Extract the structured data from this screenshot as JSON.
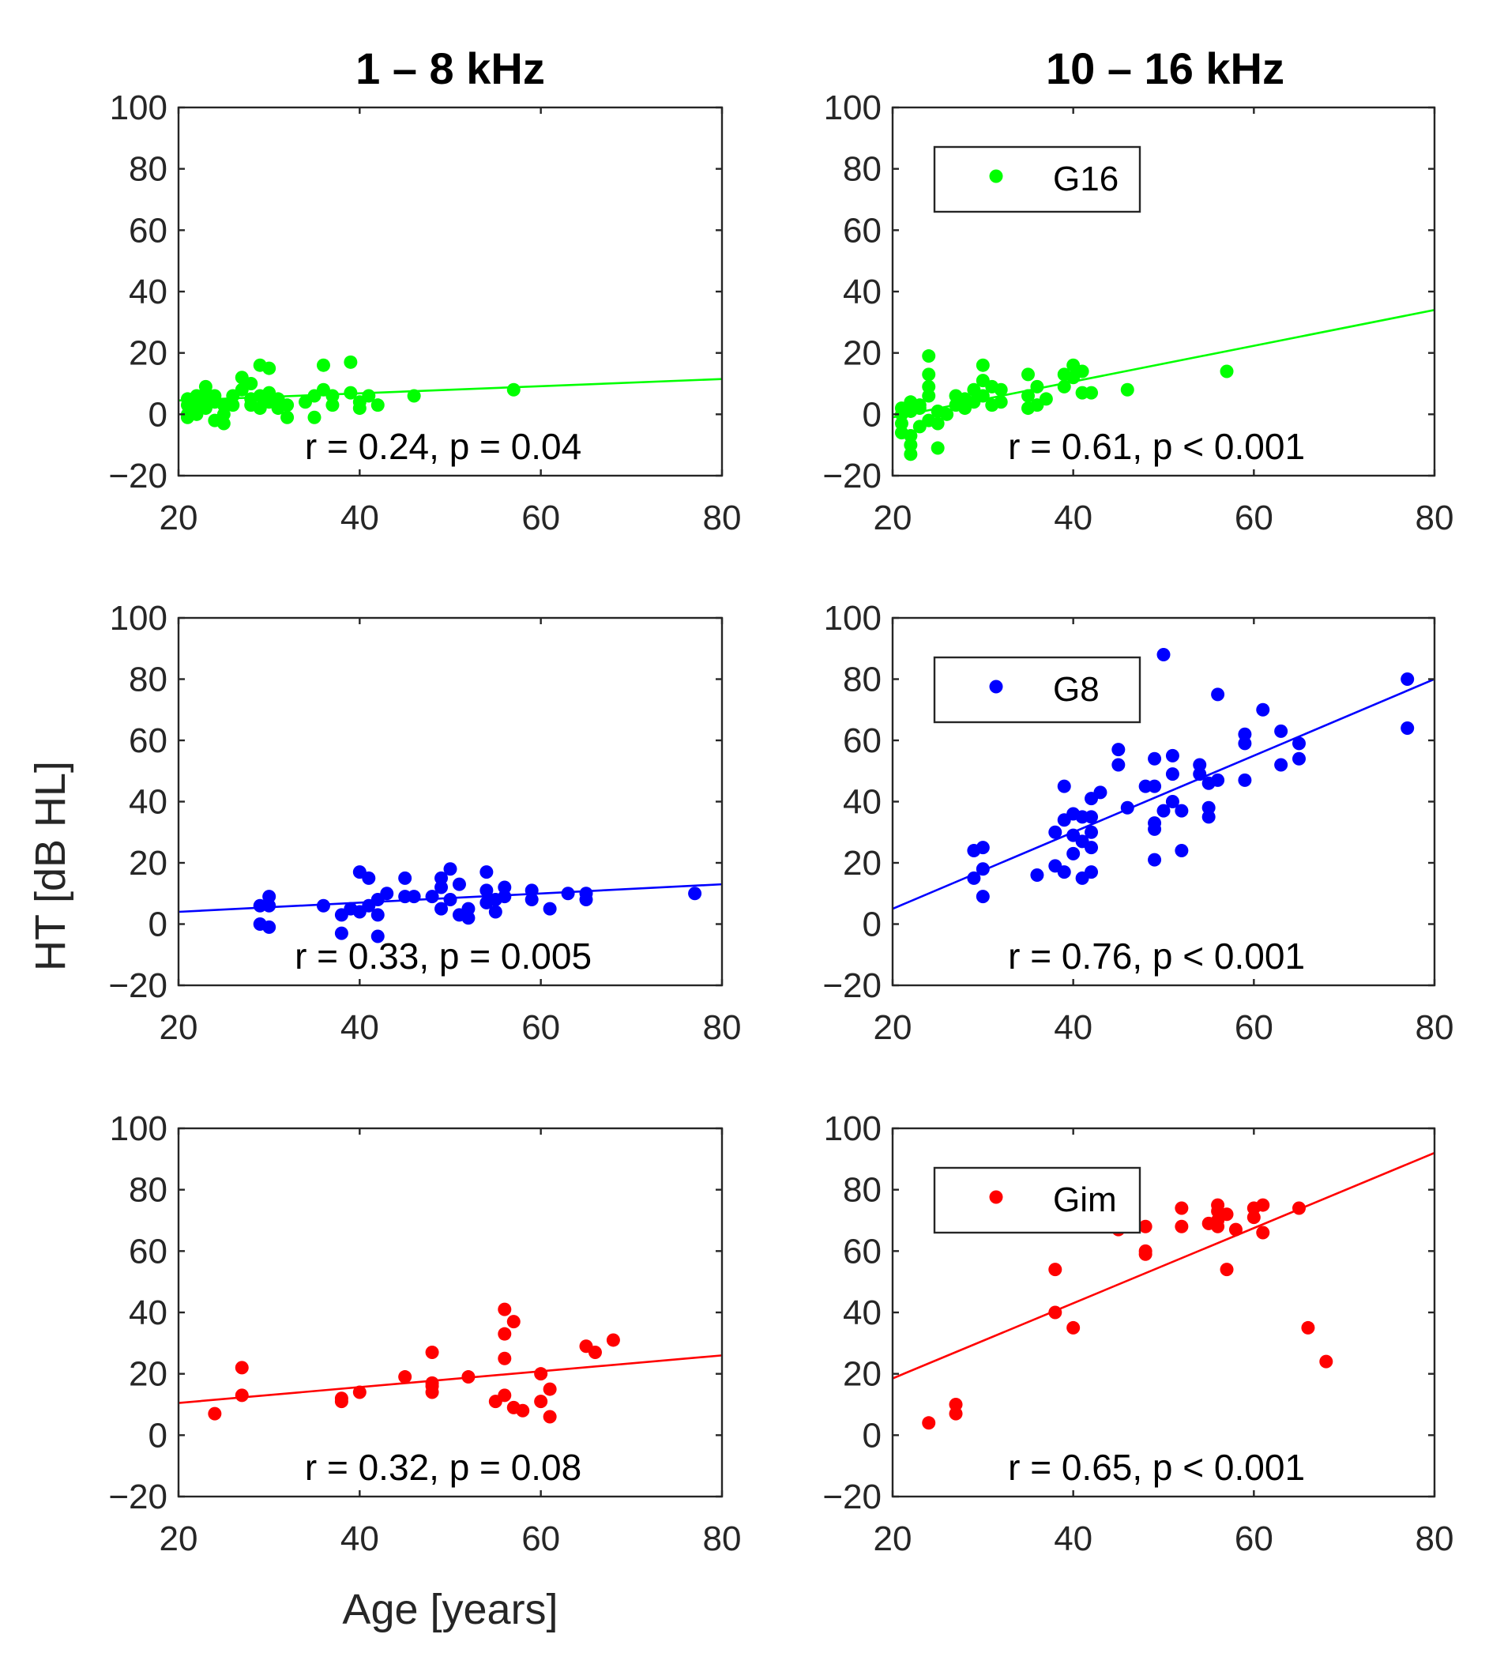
{
  "column_titles": [
    "1 – 8 kHz",
    "10 – 16 kHz"
  ],
  "ylabel": "HT [dB HL]",
  "xlabel": "Age [years]",
  "x_ticks": [
    "20",
    "40",
    "60",
    "80"
  ],
  "y_ticks": [
    "100",
    "80",
    "60",
    "40",
    "20",
    "0",
    "−20"
  ],
  "colors": {
    "G16": "#00ff00",
    "G8": "#0000ff",
    "Gim": "#ff0000",
    "axis": "#262626"
  },
  "chart_data": [
    {
      "type": "scatter",
      "group": "G16",
      "band": "1 – 8 kHz",
      "legend": null,
      "xlim": [
        20,
        80
      ],
      "ylim": [
        -20,
        100
      ],
      "fit": [
        [
          20,
          4.5
        ],
        [
          80,
          11.5
        ]
      ],
      "stat": "r = 0.24, p = 0.04",
      "points": [
        [
          21,
          5
        ],
        [
          21,
          3
        ],
        [
          21,
          0
        ],
        [
          21,
          -1
        ],
        [
          22,
          4
        ],
        [
          22,
          2
        ],
        [
          22,
          6
        ],
        [
          22,
          0
        ],
        [
          23,
          9
        ],
        [
          23,
          5
        ],
        [
          23,
          2
        ],
        [
          23,
          7
        ],
        [
          24,
          4
        ],
        [
          24,
          -2
        ],
        [
          24,
          6
        ],
        [
          25,
          3
        ],
        [
          25,
          -3
        ],
        [
          25,
          0
        ],
        [
          26,
          6
        ],
        [
          26,
          3
        ],
        [
          27,
          12
        ],
        [
          27,
          8
        ],
        [
          28,
          10
        ],
        [
          28,
          3
        ],
        [
          28,
          5
        ],
        [
          29,
          16
        ],
        [
          29,
          2
        ],
        [
          29,
          6
        ],
        [
          30,
          15
        ],
        [
          30,
          7
        ],
        [
          30,
          4
        ],
        [
          31,
          5
        ],
        [
          31,
          2
        ],
        [
          32,
          3
        ],
        [
          32,
          -1
        ],
        [
          34,
          4
        ],
        [
          35,
          -1
        ],
        [
          35,
          6
        ],
        [
          36,
          16
        ],
        [
          36,
          8
        ],
        [
          37,
          3
        ],
        [
          37,
          6
        ],
        [
          39,
          17
        ],
        [
          39,
          7
        ],
        [
          40,
          4
        ],
        [
          40,
          2
        ],
        [
          41,
          6
        ],
        [
          42,
          3
        ],
        [
          46,
          6
        ],
        [
          57,
          8
        ]
      ]
    },
    {
      "type": "scatter",
      "group": "G16",
      "band": "10 – 16 kHz",
      "legend": "G16",
      "xlim": [
        20,
        80
      ],
      "ylim": [
        -20,
        100
      ],
      "fit": [
        [
          20,
          -1
        ],
        [
          80,
          34
        ]
      ],
      "stat": "r = 0.61, p < 0.001",
      "points": [
        [
          21,
          2
        ],
        [
          21,
          -3
        ],
        [
          21,
          -6
        ],
        [
          21,
          0
        ],
        [
          22,
          -10
        ],
        [
          22,
          -13
        ],
        [
          22,
          -7
        ],
        [
          22,
          4
        ],
        [
          22,
          1
        ],
        [
          23,
          -4
        ],
        [
          23,
          2
        ],
        [
          23,
          3
        ],
        [
          24,
          19
        ],
        [
          24,
          13
        ],
        [
          24,
          9
        ],
        [
          24,
          6
        ],
        [
          24,
          -2
        ],
        [
          25,
          -11
        ],
        [
          25,
          -3
        ],
        [
          25,
          1
        ],
        [
          26,
          0
        ],
        [
          27,
          6
        ],
        [
          27,
          3
        ],
        [
          28,
          5
        ],
        [
          28,
          2
        ],
        [
          29,
          8
        ],
        [
          29,
          4
        ],
        [
          30,
          16
        ],
        [
          30,
          11
        ],
        [
          30,
          6
        ],
        [
          31,
          9
        ],
        [
          31,
          3
        ],
        [
          32,
          8
        ],
        [
          32,
          4
        ],
        [
          35,
          13
        ],
        [
          35,
          6
        ],
        [
          35,
          2
        ],
        [
          36,
          9
        ],
        [
          36,
          3
        ],
        [
          37,
          5
        ],
        [
          39,
          13
        ],
        [
          39,
          9
        ],
        [
          40,
          16
        ],
        [
          40,
          12
        ],
        [
          41,
          14
        ],
        [
          41,
          7
        ],
        [
          42,
          7
        ],
        [
          46,
          8
        ],
        [
          57,
          14
        ]
      ]
    },
    {
      "type": "scatter",
      "group": "G8",
      "band": "1 – 8 kHz",
      "legend": null,
      "xlim": [
        20,
        80
      ],
      "ylim": [
        -20,
        100
      ],
      "fit": [
        [
          20,
          4
        ],
        [
          80,
          13
        ]
      ],
      "stat": "r = 0.33, p = 0.005",
      "points": [
        [
          29,
          6
        ],
        [
          29,
          0
        ],
        [
          30,
          9
        ],
        [
          30,
          6
        ],
        [
          30,
          -1
        ],
        [
          36,
          6
        ],
        [
          38,
          -3
        ],
        [
          38,
          3
        ],
        [
          39,
          5
        ],
        [
          40,
          17
        ],
        [
          40,
          4
        ],
        [
          41,
          15
        ],
        [
          41,
          6
        ],
        [
          42,
          8
        ],
        [
          42,
          -4
        ],
        [
          42,
          3
        ],
        [
          43,
          10
        ],
        [
          45,
          15
        ],
        [
          45,
          9
        ],
        [
          46,
          9
        ],
        [
          48,
          9
        ],
        [
          49,
          15
        ],
        [
          49,
          12
        ],
        [
          49,
          5
        ],
        [
          50,
          18
        ],
        [
          50,
          8
        ],
        [
          51,
          13
        ],
        [
          51,
          3
        ],
        [
          52,
          5
        ],
        [
          52,
          2
        ],
        [
          54,
          17
        ],
        [
          54,
          11
        ],
        [
          54,
          7
        ],
        [
          55,
          8
        ],
        [
          55,
          4
        ],
        [
          56,
          12
        ],
        [
          56,
          9
        ],
        [
          59,
          11
        ],
        [
          59,
          8
        ],
        [
          61,
          5
        ],
        [
          63,
          10
        ],
        [
          65,
          10
        ],
        [
          65,
          8
        ],
        [
          77,
          10
        ]
      ]
    },
    {
      "type": "scatter",
      "group": "G8",
      "band": "10 – 16 kHz",
      "legend": "G8",
      "xlim": [
        20,
        80
      ],
      "ylim": [
        -20,
        100
      ],
      "fit": [
        [
          20,
          5
        ],
        [
          80,
          80
        ]
      ],
      "stat": "r = 0.76, p < 0.001",
      "points": [
        [
          29,
          24
        ],
        [
          29,
          15
        ],
        [
          30,
          25
        ],
        [
          30,
          18
        ],
        [
          30,
          9
        ],
        [
          36,
          16
        ],
        [
          38,
          30
        ],
        [
          38,
          19
        ],
        [
          39,
          45
        ],
        [
          39,
          34
        ],
        [
          39,
          17
        ],
        [
          40,
          36
        ],
        [
          40,
          29
        ],
        [
          40,
          23
        ],
        [
          41,
          35
        ],
        [
          41,
          27
        ],
        [
          41,
          15
        ],
        [
          42,
          41
        ],
        [
          42,
          35
        ],
        [
          42,
          30
        ],
        [
          42,
          25
        ],
        [
          42,
          17
        ],
        [
          43,
          43
        ],
        [
          45,
          57
        ],
        [
          45,
          52
        ],
        [
          46,
          38
        ],
        [
          48,
          45
        ],
        [
          49,
          54
        ],
        [
          49,
          45
        ],
        [
          49,
          33
        ],
        [
          49,
          31
        ],
        [
          49,
          21
        ],
        [
          50,
          88
        ],
        [
          50,
          37
        ],
        [
          51,
          55
        ],
        [
          51,
          49
        ],
        [
          51,
          40
        ],
        [
          52,
          37
        ],
        [
          52,
          24
        ],
        [
          54,
          52
        ],
        [
          54,
          49
        ],
        [
          55,
          46
        ],
        [
          55,
          38
        ],
        [
          55,
          35
        ],
        [
          56,
          75
        ],
        [
          56,
          47
        ],
        [
          59,
          62
        ],
        [
          59,
          59
        ],
        [
          59,
          47
        ],
        [
          61,
          70
        ],
        [
          63,
          63
        ],
        [
          63,
          52
        ],
        [
          65,
          59
        ],
        [
          65,
          54
        ],
        [
          77,
          80
        ],
        [
          77,
          64
        ]
      ]
    },
    {
      "type": "scatter",
      "group": "Gim",
      "band": "1 – 8 kHz",
      "legend": null,
      "xlim": [
        20,
        80
      ],
      "ylim": [
        -20,
        100
      ],
      "fit": [
        [
          20,
          10.5
        ],
        [
          80,
          26
        ]
      ],
      "stat": "r = 0.32, p = 0.08",
      "points": [
        [
          24,
          7
        ],
        [
          27,
          22
        ],
        [
          27,
          13
        ],
        [
          38,
          12
        ],
        [
          38,
          11
        ],
        [
          40,
          14
        ],
        [
          45,
          19
        ],
        [
          48,
          27
        ],
        [
          48,
          17
        ],
        [
          48,
          16
        ],
        [
          48,
          14
        ],
        [
          52,
          19
        ],
        [
          55,
          11
        ],
        [
          56,
          41
        ],
        [
          56,
          33
        ],
        [
          56,
          25
        ],
        [
          56,
          13
        ],
        [
          57,
          37
        ],
        [
          57,
          9
        ],
        [
          58,
          8
        ],
        [
          60,
          20
        ],
        [
          60,
          11
        ],
        [
          61,
          15
        ],
        [
          61,
          6
        ],
        [
          65,
          29
        ],
        [
          66,
          27
        ],
        [
          68,
          31
        ]
      ]
    },
    {
      "type": "scatter",
      "group": "Gim",
      "band": "10 – 16 kHz",
      "legend": "Gim",
      "xlim": [
        20,
        80
      ],
      "ylim": [
        -20,
        100
      ],
      "fit": [
        [
          20,
          18.5
        ],
        [
          80,
          92
        ]
      ],
      "stat": "r = 0.65, p < 0.001",
      "points": [
        [
          24,
          4
        ],
        [
          27,
          10
        ],
        [
          27,
          7
        ],
        [
          38,
          54
        ],
        [
          38,
          40
        ],
        [
          40,
          35
        ],
        [
          45,
          67
        ],
        [
          48,
          68
        ],
        [
          48,
          60
        ],
        [
          48,
          59
        ],
        [
          52,
          74
        ],
        [
          52,
          68
        ],
        [
          55,
          69
        ],
        [
          56,
          75
        ],
        [
          56,
          73
        ],
        [
          56,
          70
        ],
        [
          56,
          68
        ],
        [
          57,
          72
        ],
        [
          57,
          54
        ],
        [
          58,
          67
        ],
        [
          60,
          74
        ],
        [
          60,
          71
        ],
        [
          61,
          75
        ],
        [
          61,
          66
        ],
        [
          65,
          74
        ],
        [
          66,
          35
        ],
        [
          68,
          24
        ]
      ]
    }
  ]
}
